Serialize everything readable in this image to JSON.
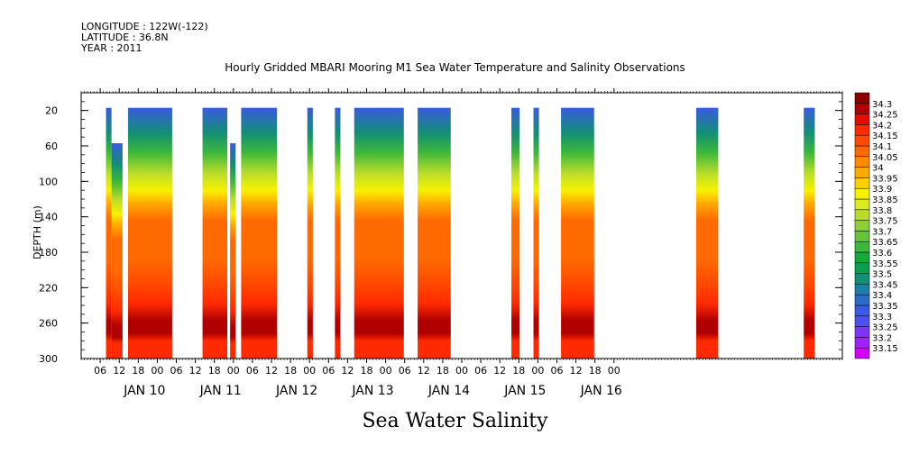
{
  "header": {
    "longitude": "LONGITUDE : 122W(-122)",
    "latitude": "LATITUDE : 36.8N",
    "year": "YEAR : 2011"
  },
  "title": "Hourly Gridded MBARI Mooring M1 Sea Water Temperature and Salinity Observations",
  "bottom_title": "Sea Water Salinity",
  "chart_data": {
    "type": "heatmap",
    "title": "Hourly Gridded MBARI Mooring M1 Sea Water Temperature and Salinity Observations",
    "xlabel": "",
    "ylabel": "DEPTH (m)",
    "xlim_hours": [
      -12,
      228
    ],
    "ylim": [
      0,
      300
    ],
    "y_inverted": true,
    "y_ticks": [
      20,
      60,
      100,
      140,
      180,
      220,
      260,
      300
    ],
    "x_hour_tick_labels": [
      "06",
      "12",
      "18",
      "00",
      "06",
      "12",
      "18",
      "00",
      "06",
      "12",
      "18",
      "00",
      "06",
      "12",
      "18",
      "00",
      "06",
      "12",
      "18",
      "00",
      "06",
      "12",
      "18",
      "00",
      "06",
      "12",
      "18",
      "00"
    ],
    "x_day_labels": [
      "JAN 10",
      "JAN 11",
      "JAN 12",
      "JAN 13",
      "JAN 14",
      "JAN 15",
      "JAN 16"
    ],
    "colorbar_levels": [
      33.15,
      33.2,
      33.25,
      33.3,
      33.35,
      33.4,
      33.45,
      33.5,
      33.55,
      33.6,
      33.65,
      33.7,
      33.75,
      33.8,
      33.85,
      33.9,
      33.95,
      34,
      34.05,
      34.1,
      34.15,
      34.2,
      34.25,
      34.3
    ],
    "colorbar_colors": [
      "#d400ff",
      "#a020ff",
      "#7a38ff",
      "#5050f0",
      "#3a5ae0",
      "#2c6bc4",
      "#1f7ea8",
      "#128f76",
      "#0a9e4e",
      "#14aa3a",
      "#3eb83a",
      "#66c43a",
      "#8fd03a",
      "#b8dc2c",
      "#dcea1e",
      "#f7f200",
      "#ffd000",
      "#ffaa00",
      "#ff8c00",
      "#ff6a00",
      "#ff4a00",
      "#ff2a00",
      "#e80c00",
      "#b00000",
      "#8b0000"
    ],
    "data_segments_hours": [
      {
        "start": 9,
        "end": 11,
        "top_depth": 20
      },
      {
        "start": 11,
        "end": 15,
        "top_depth": 60
      },
      {
        "start": 17,
        "end": 33,
        "top_depth": 20
      },
      {
        "start": 44,
        "end": 53,
        "top_depth": 20
      },
      {
        "start": 54,
        "end": 56,
        "top_depth": 60
      },
      {
        "start": 58,
        "end": 71,
        "top_depth": 20
      },
      {
        "start": 82,
        "end": 84,
        "top_depth": 20
      },
      {
        "start": 92,
        "end": 94,
        "top_depth": 20
      },
      {
        "start": 99,
        "end": 117,
        "top_depth": 20
      },
      {
        "start": 122,
        "end": 134,
        "top_depth": 20
      },
      {
        "start": 156,
        "end": 159,
        "top_depth": 20
      },
      {
        "start": 164,
        "end": 166,
        "top_depth": 20
      },
      {
        "start": 174,
        "end": 186,
        "top_depth": 20
      },
      {
        "start": 223,
        "end": 229,
        "top_depth": 20
      },
      {
        "start": 228,
        "end": 231,
        "top_depth": 20
      },
      {
        "start": 262,
        "end": 266,
        "top_depth": 20
      }
    ]
  }
}
